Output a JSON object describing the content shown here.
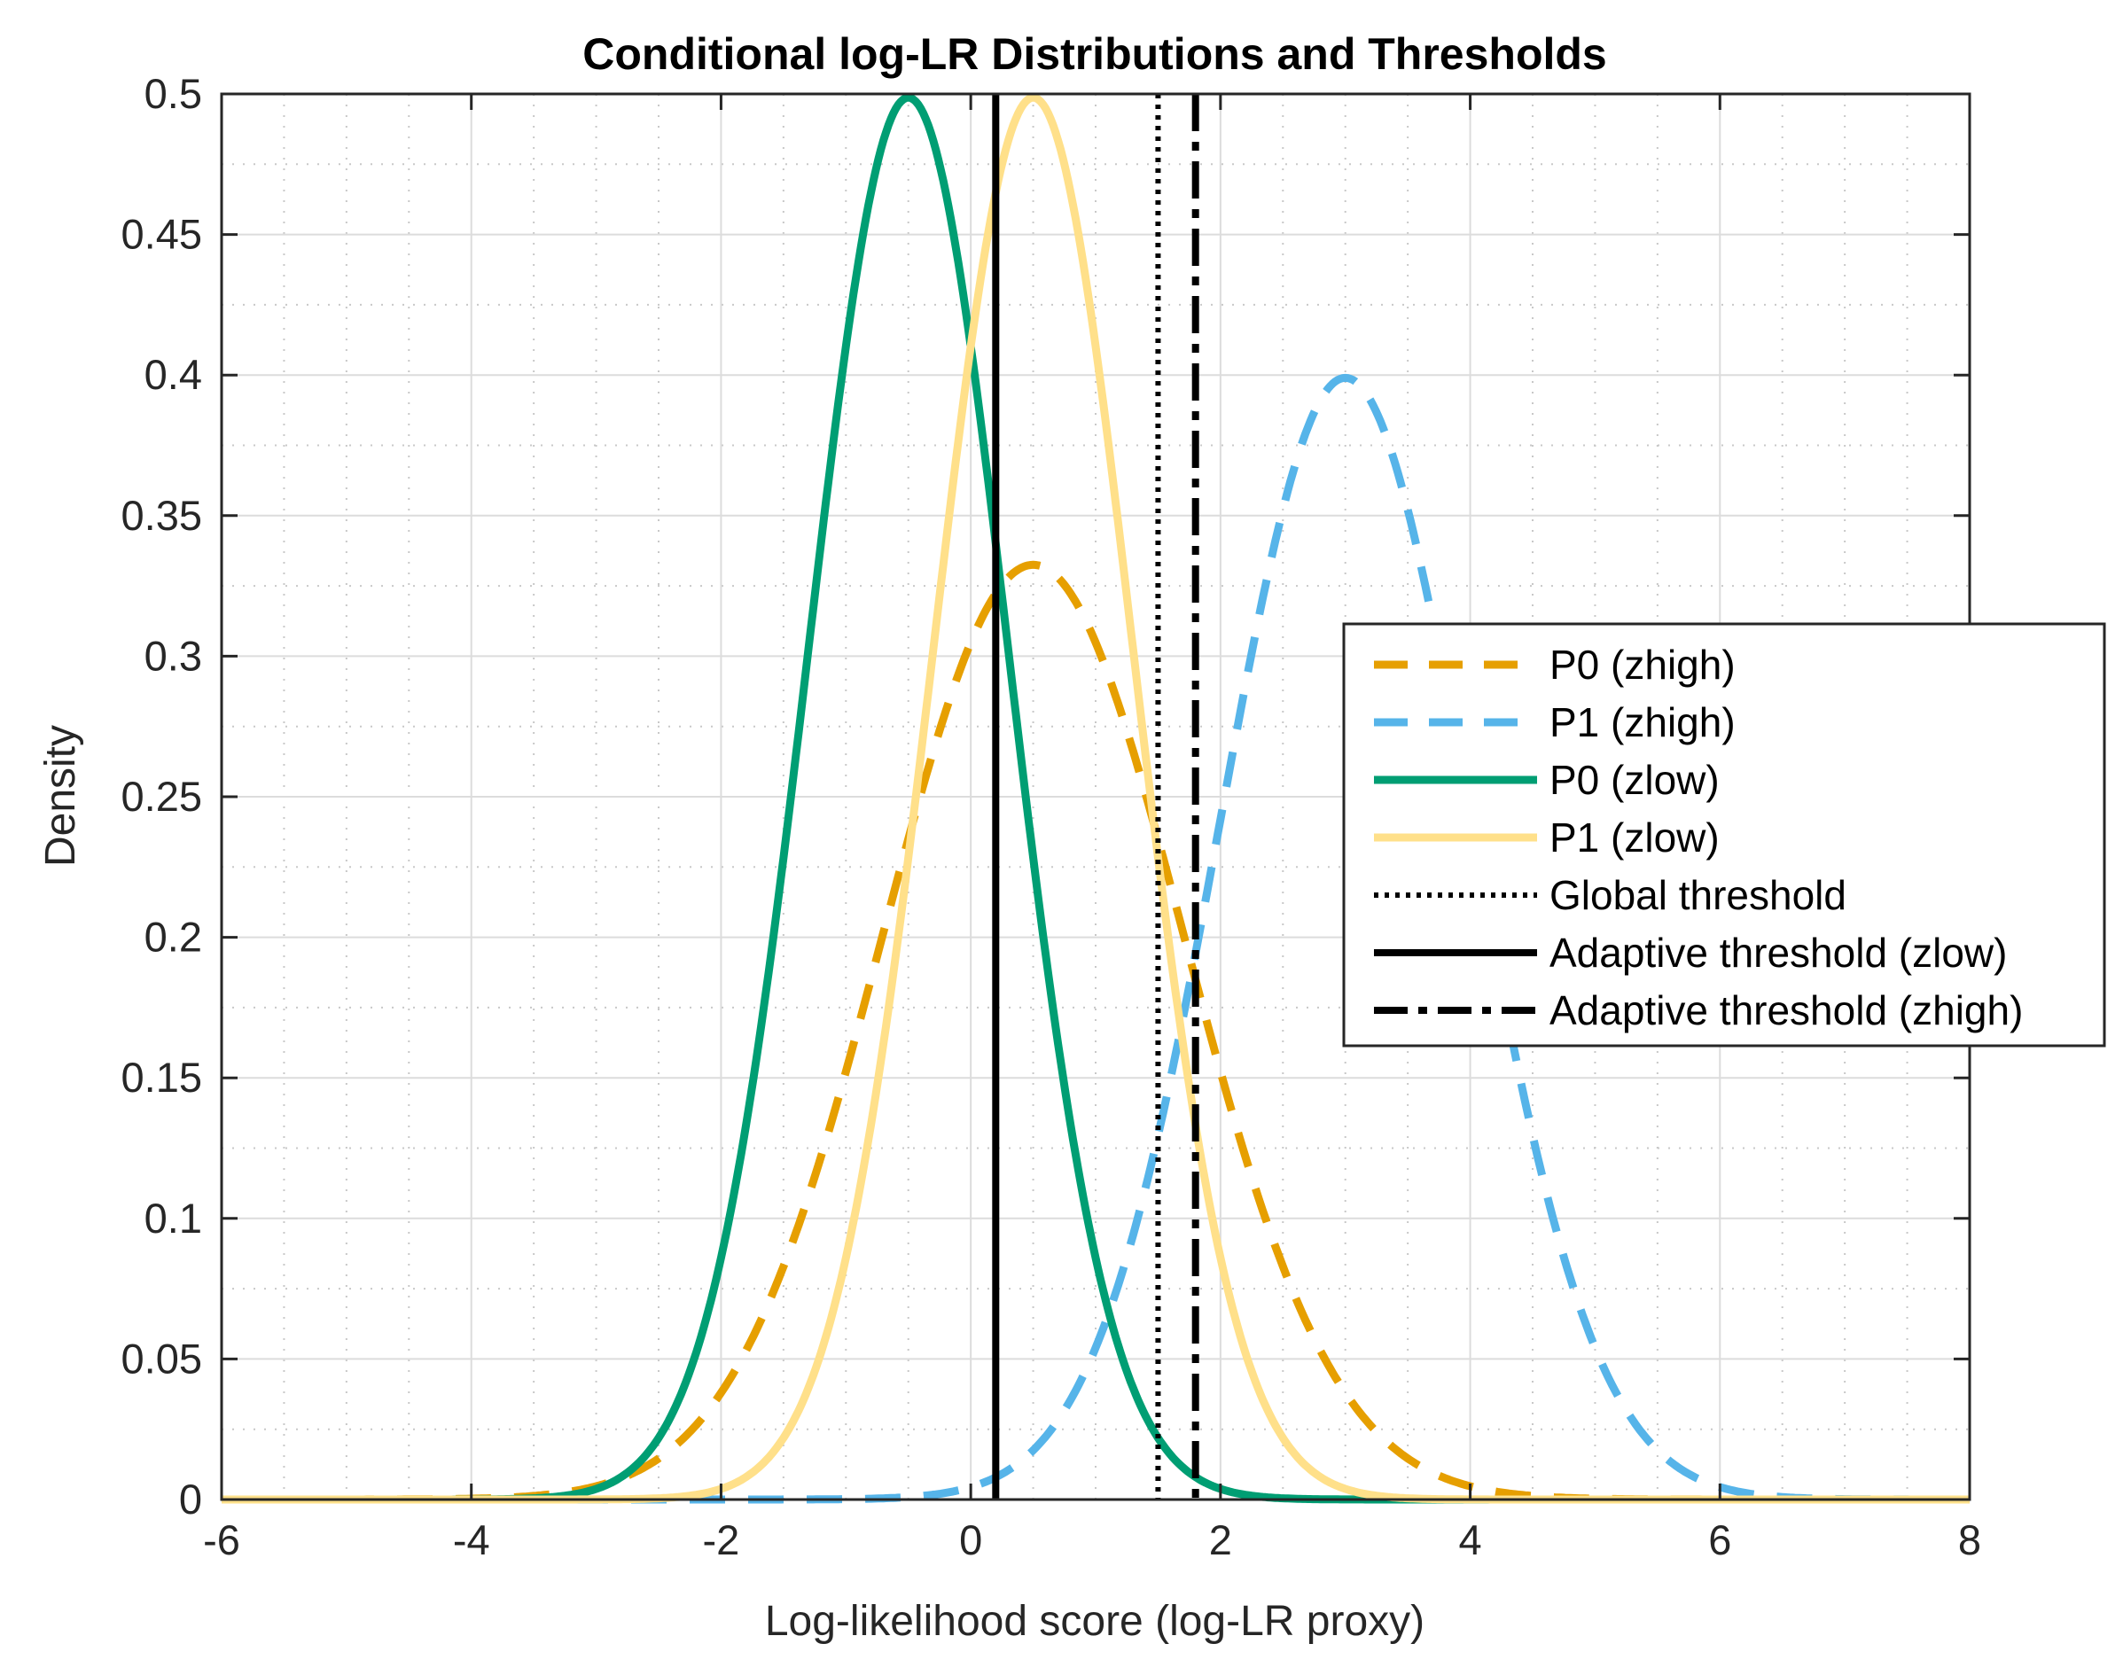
{
  "chart_data": {
    "type": "line",
    "title": "Conditional log-LR Distributions and Thresholds",
    "xlabel": "Log-likelihood score (log-LR proxy)",
    "ylabel": "Density",
    "xlim": [
      -6,
      8
    ],
    "ylim": [
      0,
      0.5
    ],
    "xticks": [
      -6,
      -4,
      -2,
      0,
      2,
      4,
      6,
      8
    ],
    "xtick_labels": [
      "-6",
      "-4",
      "-2",
      "0",
      "2",
      "4",
      "6",
      "8"
    ],
    "yticks": [
      0,
      0.05,
      0.1,
      0.15,
      0.2,
      0.25,
      0.3,
      0.35,
      0.4,
      0.45,
      0.5
    ],
    "ytick_labels": [
      "0",
      "0.05",
      "0.1",
      "0.15",
      "0.2",
      "0.25",
      "0.3",
      "0.35",
      "0.4",
      "0.45",
      "0.5"
    ],
    "grid": true,
    "minor_grid": true,
    "legend_position": "right",
    "series": [
      {
        "name": "P0 (zhigh)",
        "kind": "gaussian",
        "mean": 0.5,
        "std": 1.2,
        "peak": 0.3325,
        "color": "#E69F00",
        "style": "dashed"
      },
      {
        "name": "P1 (zhigh)",
        "kind": "gaussian",
        "mean": 3.0,
        "std": 1.0,
        "peak": 0.399,
        "color": "#56B4E9",
        "style": "dashed"
      },
      {
        "name": "P0 (zlow)",
        "kind": "gaussian",
        "mean": -0.5,
        "std": 0.8,
        "peak": 0.4987,
        "color": "#009E73",
        "style": "solid"
      },
      {
        "name": "P1 (zlow)",
        "kind": "gaussian",
        "mean": 0.5,
        "std": 0.8,
        "peak": 0.4987,
        "color": "#FFE08A",
        "style": "solid"
      }
    ],
    "thresholds": [
      {
        "name": "Global threshold",
        "x": 1.5,
        "color": "#000000",
        "style": "dotted"
      },
      {
        "name": "Adaptive threshold (zlow)",
        "x": 0.2,
        "color": "#000000",
        "style": "solid"
      },
      {
        "name": "Adaptive threshold (zhigh)",
        "x": 1.8,
        "color": "#000000",
        "style": "dashdot"
      }
    ],
    "legend": [
      "P0 (zhigh)",
      "P1 (zhigh)",
      "P0 (zlow)",
      "P1 (zlow)",
      "Global threshold",
      "Adaptive threshold (zlow)",
      "Adaptive threshold (zhigh)"
    ]
  }
}
